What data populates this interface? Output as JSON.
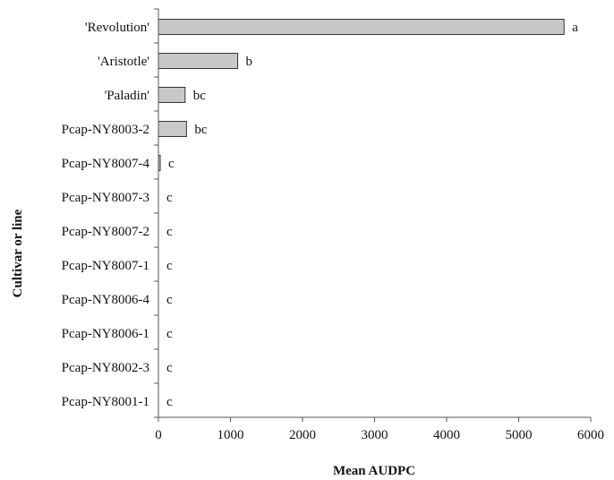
{
  "chart_data": {
    "type": "bar",
    "orientation": "horizontal",
    "categories": [
      "'Revolution'",
      "'Aristotle'",
      "'Paladin'",
      "Pcap-NY8003-2",
      "Pcap-NY8007-4",
      "Pcap-NY8007-3",
      "Pcap-NY8007-2",
      "Pcap-NY8007-1",
      "Pcap-NY8006-4",
      "Pcap-NY8006-1",
      "Pcap-NY8002-3",
      "Pcap-NY8001-1"
    ],
    "values": [
      5630,
      1100,
      370,
      390,
      25,
      0,
      0,
      0,
      0,
      0,
      0,
      0
    ],
    "significance_letters": [
      "a",
      "b",
      "bc",
      "bc",
      "c",
      "c",
      "c",
      "c",
      "c",
      "c",
      "c",
      "c"
    ],
    "xlabel": "Mean AUDPC",
    "ylabel": "Cultivar or line",
    "xlim": [
      0,
      6000
    ],
    "xticks": [
      "0",
      "1000",
      "2000",
      "3000",
      "4000",
      "5000",
      "6000"
    ],
    "bar_color": "#c8c8c8",
    "bar_edge_color": "#333333",
    "grid": false,
    "legend": "none"
  }
}
